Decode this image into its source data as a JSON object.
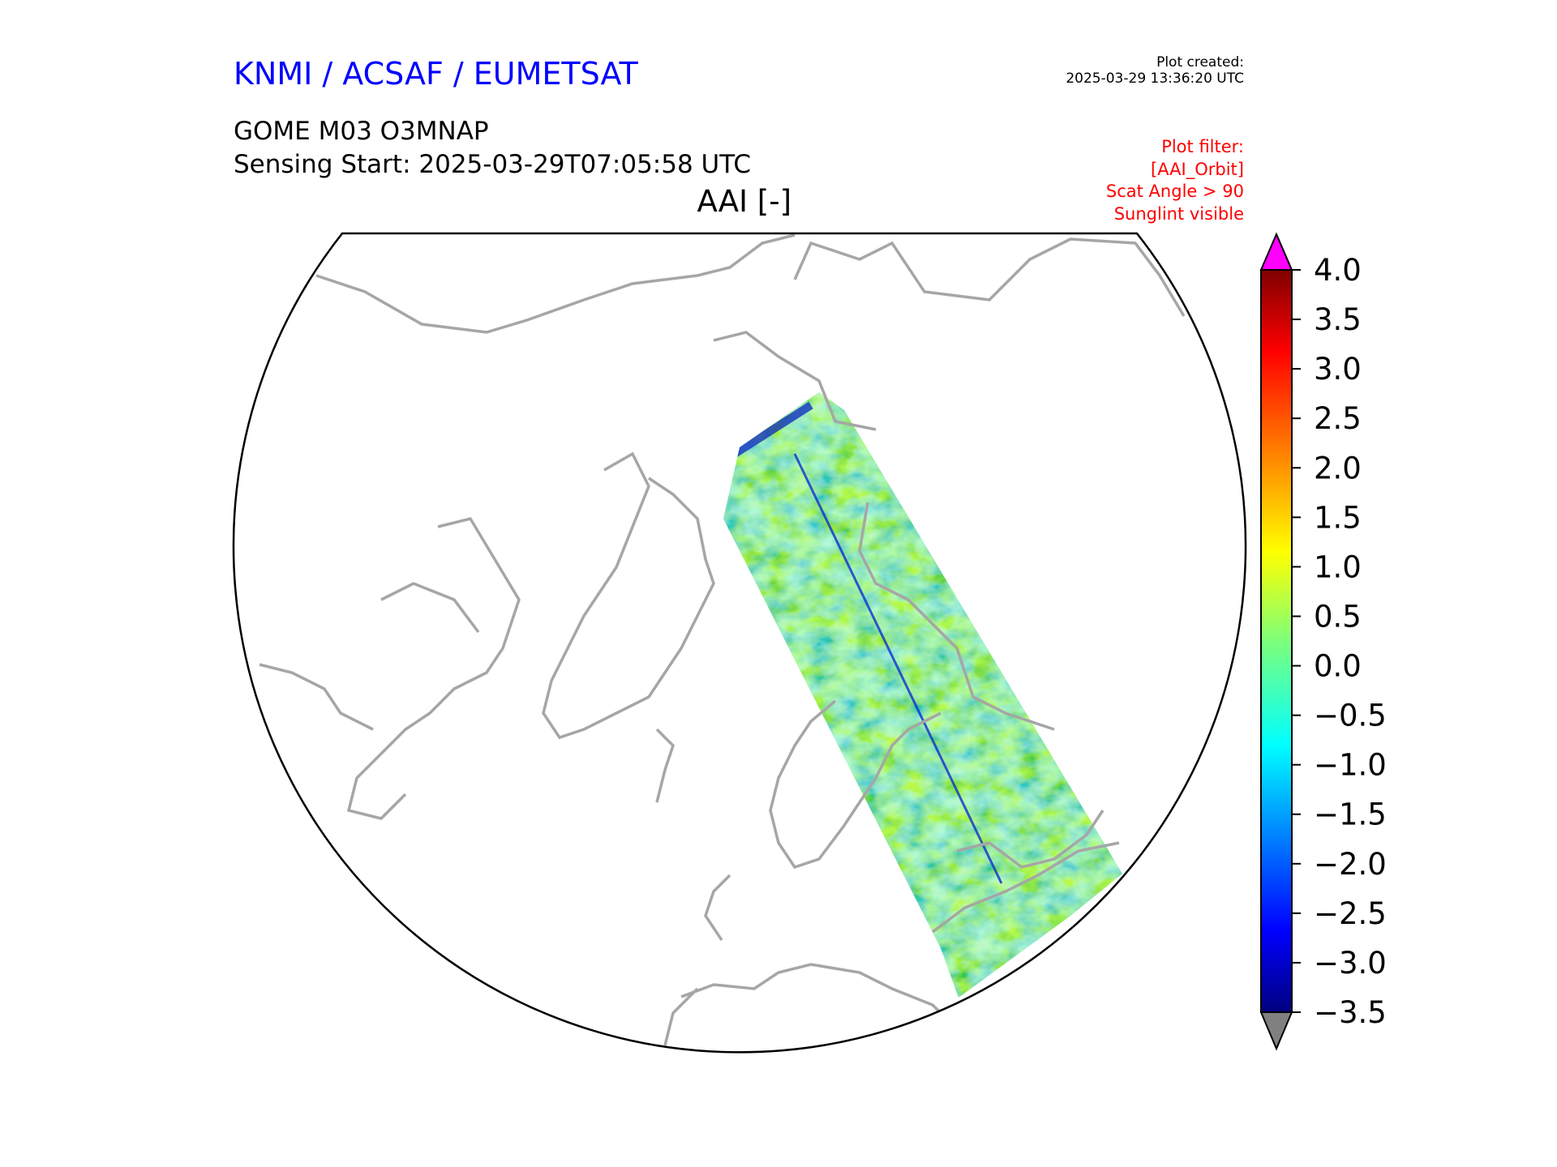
{
  "header": {
    "organization": "KNMI / ACSAF / EUMETSAT",
    "product": "GOME M03 O3MNAP",
    "sensing_start": "Sensing Start: 2025-03-29T07:05:58 UTC",
    "variable": "AAI [-]",
    "plot_created_label": "Plot created:",
    "plot_created_value": "2025-03-29 13:36:20 UTC",
    "filter_lines": [
      "Plot filter:",
      "[AAI_Orbit]",
      "Scat Angle > 90",
      "Sunglint visible"
    ]
  },
  "colors": {
    "title": "#0000ff",
    "filter": "#ff0000",
    "coastline": "#a6a6a6",
    "over": "#ff00ff",
    "under": "#808080"
  },
  "chart_data": {
    "type": "heatmap",
    "title": "AAI [-]",
    "projection": "north polar stereographic",
    "colormap": "jet",
    "vmin": -3.5,
    "vmax": 4.0,
    "extend": "both",
    "colorbar_ticks": [
      "4.0",
      "3.5",
      "3.0",
      "2.5",
      "2.0",
      "1.5",
      "1.0",
      "0.5",
      "0.0",
      "−0.5",
      "−1.0",
      "−1.5",
      "−2.0",
      "−2.5",
      "−3.0",
      "−3.5"
    ],
    "swath_typical_range": [
      -1.0,
      1.5
    ]
  }
}
